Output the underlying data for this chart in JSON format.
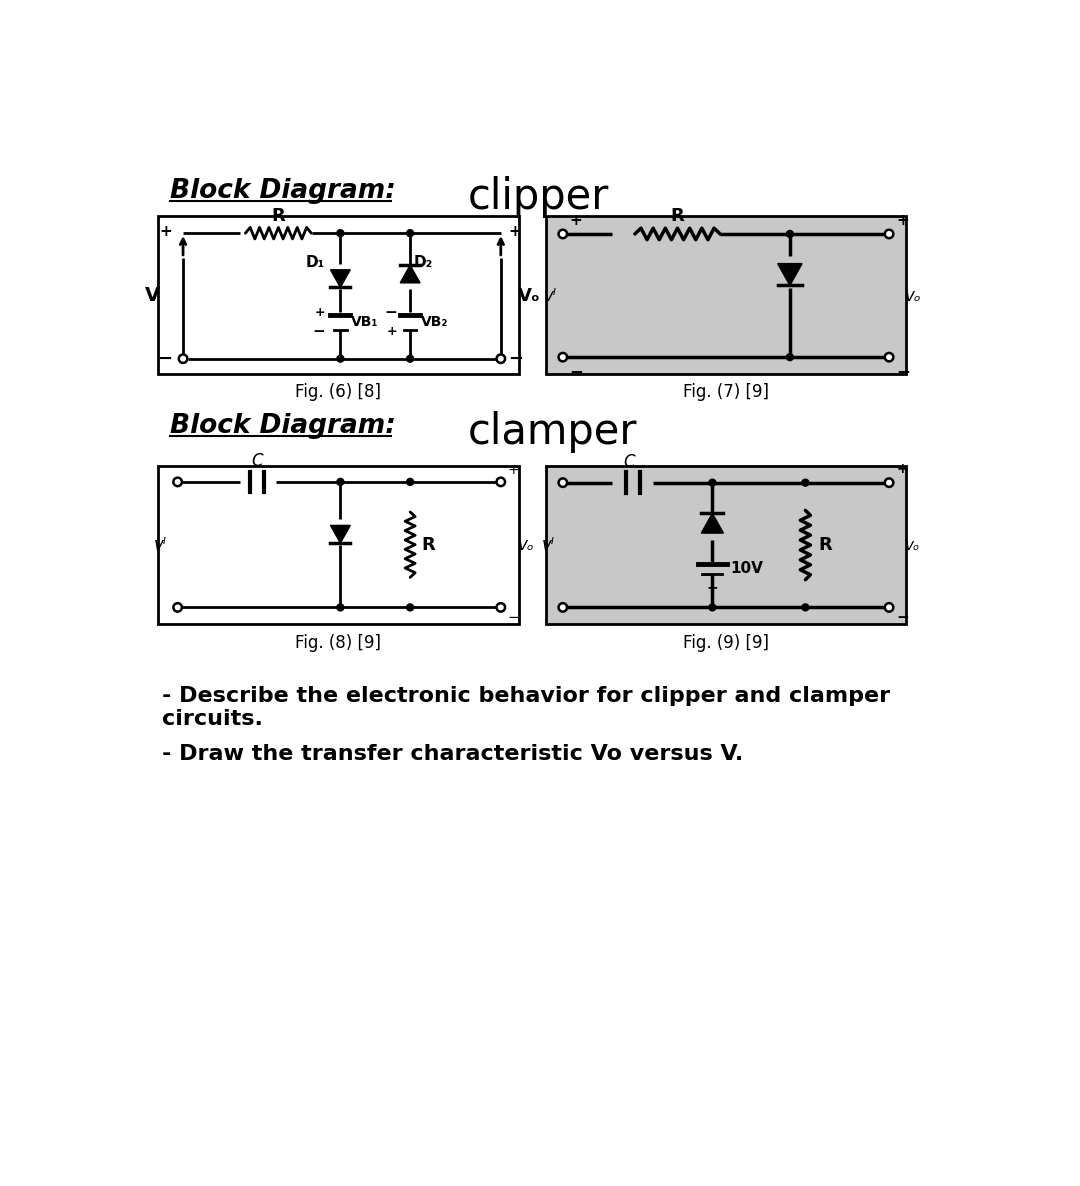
{
  "bg_color": "#ffffff",
  "title1_italic_bold": "Block Diagram:",
  "title1_main": "clipper",
  "title2_italic_bold": "Block Diagram:",
  "title2_main": "clamper",
  "fig6_caption": "Fig. (6) [8]",
  "fig7_caption": "Fig. (7) [9]",
  "fig8_caption": "Fig. (8) [9]",
  "fig9_caption": "Fig. (9) [9]",
  "bullet1": "- Describe the electronic behavior for clipper and clamper\ncircuits.",
  "bullet2": "- Draw the transfer characteristic Vo versus V.",
  "line_color": "#000000",
  "fig7_bg": "#c8c8c8",
  "fig9_bg": "#c8c8c8"
}
